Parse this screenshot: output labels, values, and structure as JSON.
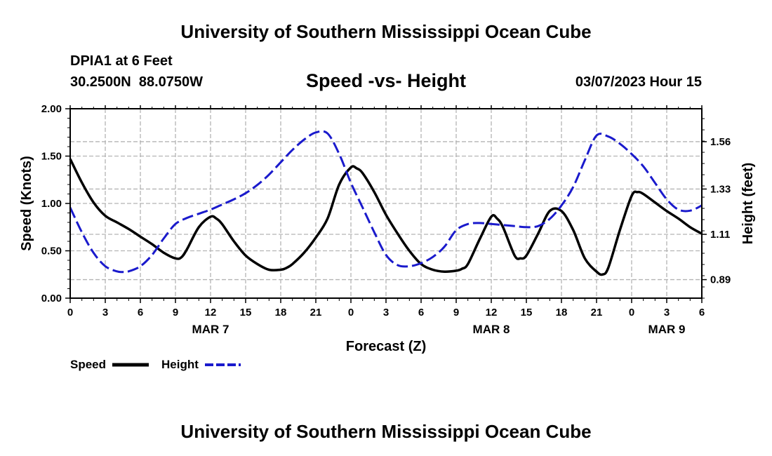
{
  "header": {
    "title": "University of Southern Mississippi Ocean Cube",
    "station": "DPIA1 at 6 Feet",
    "coords": "30.2500N  88.0750W",
    "datetime": "03/07/2023 Hour 15"
  },
  "footer": {
    "title": "University of Southern Mississippi Ocean Cube"
  },
  "legend": {
    "speed_label": "Speed",
    "height_label": "Height"
  },
  "colors": {
    "speed": "#000000",
    "height": "#1a1acc",
    "grid": "#b4b4b4"
  },
  "chart_data": {
    "type": "line",
    "title": "Speed -vs- Height",
    "xlabel": "Forecast (Z)",
    "ylabel": "Speed (Knots)",
    "y2label": "Height (feet)",
    "x_range": [
      0,
      54
    ],
    "ylim": [
      0,
      2.0
    ],
    "y2lim": [
      0.8,
      1.72
    ],
    "y_ticks": [
      0.0,
      0.5,
      1.0,
      1.5,
      2.0
    ],
    "y_tick_labels": [
      "0.00",
      "0.50",
      "1.00",
      "1.50",
      "2.00"
    ],
    "y2_ticks": [
      0.89,
      1.11,
      1.33,
      1.56
    ],
    "y2_tick_labels": [
      "0.89",
      "1.11",
      "1.33",
      "1.56"
    ],
    "x_ticks": [
      0,
      3,
      6,
      9,
      12,
      15,
      18,
      21,
      24,
      27,
      30,
      33,
      36,
      39,
      42,
      45,
      48,
      51,
      54
    ],
    "x_tick_labels": [
      "0",
      "3",
      "6",
      "9",
      "12",
      "15",
      "18",
      "21",
      "0",
      "3",
      "6",
      "9",
      "12",
      "15",
      "18",
      "21",
      "0",
      "3",
      "6"
    ],
    "date_labels": [
      {
        "x": 12,
        "label": "MAR 7"
      },
      {
        "x": 36,
        "label": "MAR 8"
      },
      {
        "x": 51,
        "label": "MAR 9"
      }
    ],
    "grid": true,
    "series": [
      {
        "name": "Speed",
        "axis": "left",
        "style": "solid",
        "x": [
          0,
          1,
          2,
          3,
          4,
          5,
          6,
          7,
          8,
          9,
          9.5,
          10,
          11,
          12,
          12.5,
          13,
          14,
          15,
          16,
          17,
          18,
          18.5,
          19,
          20,
          21,
          22,
          23,
          24,
          24.5,
          25,
          26,
          27,
          28,
          29,
          30,
          31,
          32,
          33,
          33.5,
          34,
          35,
          36,
          36.5,
          37,
          38,
          38.5,
          39,
          40,
          41,
          42,
          43,
          44,
          45,
          45.5,
          46,
          47,
          48,
          48.5,
          49,
          50,
          51,
          52,
          53,
          54
        ],
        "values": [
          1.47,
          1.22,
          1.01,
          0.87,
          0.8,
          0.73,
          0.65,
          0.57,
          0.48,
          0.42,
          0.43,
          0.52,
          0.75,
          0.86,
          0.84,
          0.78,
          0.6,
          0.45,
          0.36,
          0.3,
          0.3,
          0.32,
          0.36,
          0.48,
          0.64,
          0.84,
          1.2,
          1.38,
          1.37,
          1.32,
          1.12,
          0.88,
          0.68,
          0.5,
          0.36,
          0.3,
          0.28,
          0.29,
          0.31,
          0.36,
          0.62,
          0.86,
          0.84,
          0.75,
          0.45,
          0.42,
          0.45,
          0.68,
          0.92,
          0.92,
          0.72,
          0.42,
          0.28,
          0.25,
          0.32,
          0.72,
          1.08,
          1.12,
          1.1,
          1.01,
          0.92,
          0.84,
          0.75,
          0.68
        ]
      },
      {
        "name": "Height",
        "axis": "right",
        "style": "dashed",
        "x": [
          0,
          1,
          2,
          3,
          4,
          4.5,
          5,
          6,
          7,
          8,
          9,
          10,
          11,
          12,
          13,
          14,
          15,
          16,
          17,
          18,
          19,
          20,
          21,
          22,
          23,
          24,
          25,
          26,
          27,
          28,
          29,
          30,
          31,
          32,
          33,
          34,
          35,
          36,
          37,
          38,
          39,
          40,
          41,
          42,
          43,
          44,
          45,
          46,
          47,
          48,
          49,
          50,
          51,
          52,
          53,
          54
        ],
        "values": [
          1.24,
          1.12,
          1.02,
          0.955,
          0.93,
          0.927,
          0.93,
          0.955,
          1.01,
          1.09,
          1.16,
          1.19,
          1.21,
          1.23,
          1.255,
          1.28,
          1.31,
          1.35,
          1.4,
          1.46,
          1.52,
          1.57,
          1.605,
          1.6,
          1.5,
          1.36,
          1.24,
          1.12,
          1.01,
          0.96,
          0.955,
          0.97,
          1.0,
          1.05,
          1.13,
          1.16,
          1.165,
          1.16,
          1.155,
          1.15,
          1.145,
          1.15,
          1.185,
          1.25,
          1.34,
          1.47,
          1.59,
          1.585,
          1.55,
          1.5,
          1.44,
          1.36,
          1.28,
          1.23,
          1.225,
          1.25
        ]
      }
    ]
  }
}
